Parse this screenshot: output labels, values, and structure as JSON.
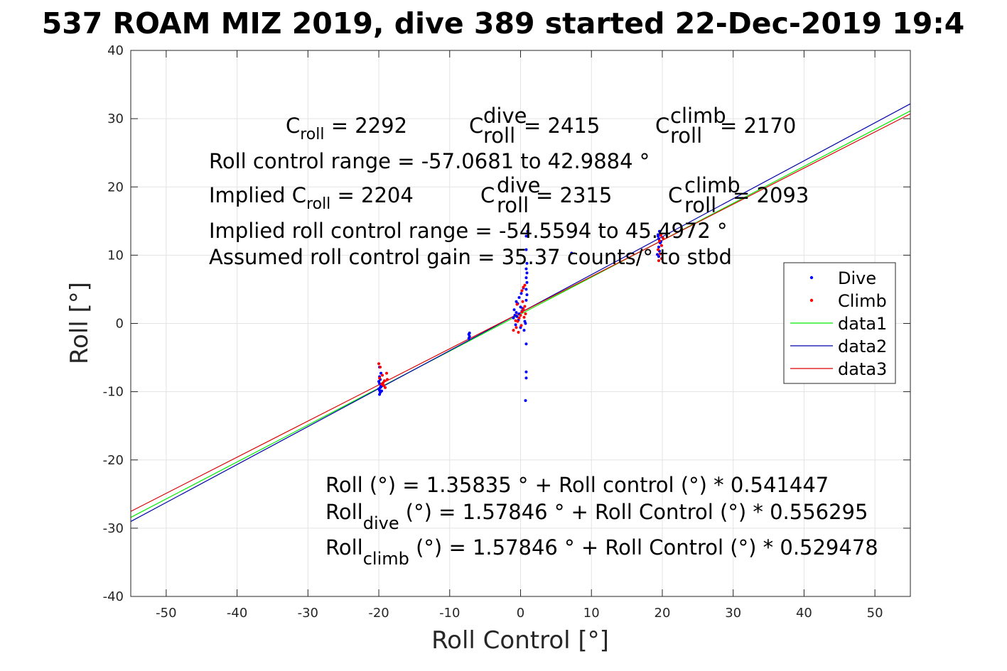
{
  "chart_data": {
    "type": "scatter",
    "title": "537 ROAM MIZ 2019, dive 389 started 22-Dec-2019 19:4",
    "xlabel": "Roll Control [°]",
    "ylabel": "Roll [°]",
    "xlim": [
      -55,
      55
    ],
    "ylim": [
      -40,
      40
    ],
    "xticks": [
      -50,
      -40,
      -30,
      -20,
      -10,
      0,
      10,
      20,
      30,
      40,
      50
    ],
    "yticks": [
      -40,
      -30,
      -20,
      -10,
      0,
      10,
      20,
      30,
      40
    ],
    "xtick_labels": [
      "-50",
      "-40",
      "-30",
      "-20",
      "-10",
      "0",
      "10",
      "20",
      "30",
      "40",
      "50"
    ],
    "ytick_labels": [
      "-40",
      "-30",
      "-20",
      "-10",
      "0",
      "10",
      "20",
      "30",
      "40"
    ],
    "grid": true,
    "legend_position": "right",
    "legend": [
      "Dive",
      "Climb",
      "data1",
      "data2",
      "data3"
    ],
    "series": [
      {
        "name": "Dive",
        "kind": "points",
        "color": "#0000ff",
        "points": [
          [
            -19.9,
            -10.4
          ],
          [
            -19.8,
            -10.1
          ],
          [
            -19.9,
            -9.8
          ],
          [
            -20.0,
            -9.6
          ],
          [
            -19.8,
            -9.4
          ],
          [
            -19.7,
            -9.1
          ],
          [
            -19.9,
            -8.8
          ],
          [
            -20.0,
            -8.5
          ],
          [
            -19.8,
            -8.2
          ],
          [
            -19.6,
            -9.9
          ],
          [
            -19.9,
            -7.8
          ],
          [
            -19.7,
            -7.3
          ],
          [
            -19.9,
            -6.4
          ],
          [
            -19.7,
            -9.3
          ],
          [
            -7.3,
            -2.2
          ],
          [
            -7.2,
            -1.9
          ],
          [
            -7.3,
            -1.6
          ],
          [
            -7.2,
            -1.4
          ],
          [
            -1.0,
            0.8
          ],
          [
            -0.8,
            1.2
          ],
          [
            -0.6,
            1.6
          ],
          [
            -0.9,
            2.0
          ],
          [
            -0.5,
            1.0
          ],
          [
            -0.3,
            0.5
          ],
          [
            -0.2,
            1.4
          ],
          [
            0.0,
            2.4
          ],
          [
            0.2,
            1.8
          ],
          [
            -0.4,
            2.9
          ],
          [
            -0.6,
            3.2
          ],
          [
            -0.2,
            3.8
          ],
          [
            0.1,
            4.4
          ],
          [
            0.4,
            5.2
          ],
          [
            0.3,
            2.2
          ],
          [
            0.6,
            0.3
          ],
          [
            -0.7,
            -0.2
          ],
          [
            0.0,
            -0.6
          ],
          [
            0.5,
            -1.0
          ],
          [
            0.8,
            3.4
          ],
          [
            0.9,
            4.2
          ],
          [
            0.8,
            5.0
          ],
          [
            0.9,
            6.0
          ],
          [
            0.8,
            6.7
          ],
          [
            0.9,
            7.4
          ],
          [
            0.8,
            8.0
          ],
          [
            0.9,
            8.8
          ],
          [
            0.8,
            10.8
          ],
          [
            0.8,
            12.8
          ],
          [
            1.0,
            13.5
          ],
          [
            0.7,
            0.0
          ],
          [
            0.8,
            -3.0
          ],
          [
            0.8,
            -7.1
          ],
          [
            0.8,
            -8.0
          ],
          [
            0.7,
            -11.3
          ],
          [
            7.2,
            10.3
          ],
          [
            19.6,
            13.5
          ],
          [
            19.4,
            13.0
          ],
          [
            19.5,
            12.4
          ],
          [
            19.7,
            11.8
          ],
          [
            19.5,
            11.2
          ],
          [
            19.6,
            10.6
          ],
          [
            19.3,
            10.1
          ],
          [
            19.4,
            12.8
          ],
          [
            19.8,
            12.0
          ],
          [
            19.5,
            9.8
          ]
        ]
      },
      {
        "name": "Climb",
        "kind": "points",
        "color": "#ff0000",
        "points": [
          [
            -20.0,
            -5.9
          ],
          [
            -19.8,
            -6.4
          ],
          [
            -19.5,
            -7.6
          ],
          [
            -19.2,
            -8.4
          ],
          [
            -18.8,
            -8.2
          ],
          [
            -19.3,
            -9.1
          ],
          [
            -19.6,
            -8.9
          ],
          [
            -19.1,
            -9.4
          ],
          [
            -19.9,
            -8.0
          ],
          [
            -18.9,
            -7.3
          ],
          [
            -19.4,
            -8.7
          ],
          [
            -1.0,
            -1.0
          ],
          [
            -0.6,
            -0.6
          ],
          [
            -0.4,
            0.3
          ],
          [
            -0.2,
            0.8
          ],
          [
            0.0,
            1.2
          ],
          [
            0.2,
            1.7
          ],
          [
            0.4,
            2.1
          ],
          [
            0.6,
            2.5
          ],
          [
            -0.5,
            2.8
          ],
          [
            0.3,
            3.2
          ],
          [
            0.1,
            -0.3
          ],
          [
            -0.7,
            0.4
          ],
          [
            0.5,
            0.9
          ],
          [
            -0.3,
            -1.3
          ],
          [
            0.7,
            1.4
          ],
          [
            0.4,
            5.3
          ],
          [
            0.6,
            5.6
          ],
          [
            0.2,
            4.8
          ],
          [
            19.8,
            12.9
          ],
          [
            19.6,
            12.1
          ],
          [
            19.9,
            11.4
          ],
          [
            19.4,
            10.8
          ],
          [
            19.7,
            10.2
          ],
          [
            19.9,
            9.5
          ],
          [
            20.1,
            12.5
          ],
          [
            19.5,
            9.2
          ]
        ]
      },
      {
        "name": "data1",
        "kind": "line",
        "color": "#00ee00",
        "x": [
          -55,
          55
        ],
        "y": [
          -28.42,
          31.14
        ]
      },
      {
        "name": "data2",
        "kind": "line",
        "color": "#0000aa",
        "x": [
          -55,
          55
        ],
        "y": [
          -29.02,
          32.18
        ]
      },
      {
        "name": "data3",
        "kind": "line",
        "color": "#dd0000",
        "x": [
          -55,
          55
        ],
        "y": [
          -27.54,
          30.7
        ]
      }
    ],
    "annotations": {
      "top_row1": [
        {
          "base": "C",
          "sup": "",
          "sub": "roll",
          "rest": " = 2292"
        },
        {
          "base": "C",
          "sup": "dive",
          "sub": "roll",
          "rest": " = 2415"
        },
        {
          "base": "C",
          "sup": "climb",
          "sub": "roll",
          "rest": " = 2170"
        }
      ],
      "range_line": "Roll control range = -57.0681 to 42.9884 °",
      "implied_row": [
        {
          "base": "Implied C",
          "sup": "",
          "sub": "roll",
          "rest": " = 2204"
        },
        {
          "base": "C",
          "sup": "dive",
          "sub": "roll",
          "rest": " = 2315"
        },
        {
          "base": "C",
          "sup": "climb",
          "sub": "roll",
          "rest": " = 2093"
        }
      ],
      "implied_range_line": "Implied roll control range = -54.5594 to 45.4972 °",
      "gain_line": "Assumed roll control gain = 35.37 counts/° to stbd",
      "fit_line": "Roll (°) = 1.35835 ° + Roll control (°) * 0.541447",
      "fit_dive": {
        "base": "Roll",
        "sub": "dive",
        "rest": " (°) = 1.57846 ° + Roll Control (°) * 0.556295"
      },
      "fit_climb": {
        "base": "Roll",
        "sub": "climb",
        "rest": " (°) = 1.57846 ° + Roll Control (°) * 0.529478"
      }
    }
  }
}
